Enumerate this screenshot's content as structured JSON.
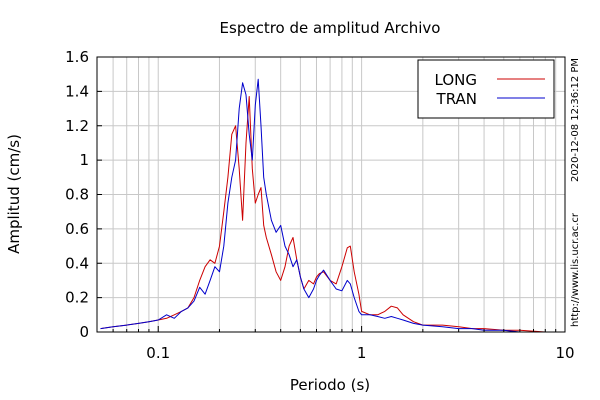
{
  "chart_data": {
    "type": "line",
    "title": "Espectro de amplitud Archivo",
    "xlabel": "Periodo (s)",
    "ylabel": "Amplitud (cm/s)",
    "xscale": "log",
    "xlim": [
      0.05,
      10
    ],
    "ylim": [
      0,
      1.6
    ],
    "x_ticks": [
      0.1,
      1,
      10
    ],
    "x_tick_labels": [
      "0.1",
      "1",
      "10"
    ],
    "y_ticks": [
      0,
      0.2,
      0.4,
      0.6,
      0.8,
      1,
      1.2,
      1.4,
      1.6
    ],
    "y_tick_labels": [
      "0",
      "0.2",
      "0.4",
      "0.6",
      "0.8",
      "1",
      "1.2",
      "1.4",
      "1.6"
    ],
    "grid": true,
    "legend_position": "top-right",
    "side_text_top": "2020-12-08 12:36:12 PM",
    "side_text_bottom": "http://www.lis.ucr.ac.cr",
    "series": [
      {
        "name": "LONG",
        "color": "#cc0000",
        "x": [
          0.052,
          0.06,
          0.07,
          0.08,
          0.09,
          0.1,
          0.11,
          0.12,
          0.13,
          0.14,
          0.15,
          0.16,
          0.17,
          0.18,
          0.19,
          0.2,
          0.21,
          0.22,
          0.23,
          0.24,
          0.25,
          0.26,
          0.27,
          0.28,
          0.29,
          0.3,
          0.31,
          0.32,
          0.33,
          0.34,
          0.36,
          0.38,
          0.4,
          0.42,
          0.44,
          0.46,
          0.48,
          0.5,
          0.52,
          0.55,
          0.58,
          0.6,
          0.62,
          0.65,
          0.7,
          0.75,
          0.8,
          0.85,
          0.88,
          0.92,
          0.97,
          1.0,
          1.1,
          1.2,
          1.3,
          1.4,
          1.5,
          1.6,
          1.8,
          2.0,
          2.5,
          3.0,
          3.5,
          4.0,
          5.0,
          6.0,
          8.0,
          10.0
        ],
        "values": [
          0.02,
          0.03,
          0.04,
          0.05,
          0.06,
          0.07,
          0.08,
          0.1,
          0.12,
          0.14,
          0.2,
          0.3,
          0.38,
          0.42,
          0.4,
          0.5,
          0.7,
          0.9,
          1.15,
          1.2,
          0.95,
          0.65,
          1.1,
          1.37,
          0.95,
          0.75,
          0.8,
          0.84,
          0.62,
          0.55,
          0.45,
          0.35,
          0.3,
          0.38,
          0.5,
          0.55,
          0.42,
          0.32,
          0.25,
          0.3,
          0.28,
          0.32,
          0.34,
          0.35,
          0.3,
          0.28,
          0.38,
          0.49,
          0.5,
          0.35,
          0.22,
          0.12,
          0.1,
          0.1,
          0.12,
          0.15,
          0.14,
          0.1,
          0.06,
          0.04,
          0.04,
          0.03,
          0.02,
          0.02,
          0.01,
          0.01,
          0.0,
          0.0
        ]
      },
      {
        "name": "TRAN",
        "color": "#0000cc",
        "x": [
          0.052,
          0.06,
          0.07,
          0.08,
          0.09,
          0.1,
          0.11,
          0.12,
          0.13,
          0.14,
          0.15,
          0.16,
          0.17,
          0.18,
          0.19,
          0.2,
          0.21,
          0.22,
          0.23,
          0.24,
          0.25,
          0.26,
          0.27,
          0.28,
          0.29,
          0.3,
          0.31,
          0.32,
          0.33,
          0.34,
          0.36,
          0.38,
          0.4,
          0.42,
          0.44,
          0.46,
          0.48,
          0.5,
          0.52,
          0.55,
          0.58,
          0.6,
          0.62,
          0.65,
          0.7,
          0.75,
          0.8,
          0.85,
          0.88,
          0.92,
          0.97,
          1.0,
          1.1,
          1.2,
          1.3,
          1.4,
          1.5,
          1.6,
          1.8,
          2.0,
          2.5,
          3.0,
          3.5,
          4.0,
          5.0,
          6.0,
          8.0,
          10.0
        ],
        "values": [
          0.02,
          0.03,
          0.04,
          0.05,
          0.06,
          0.07,
          0.1,
          0.08,
          0.12,
          0.14,
          0.18,
          0.26,
          0.22,
          0.3,
          0.38,
          0.35,
          0.5,
          0.75,
          0.9,
          1.0,
          1.3,
          1.45,
          1.38,
          1.15,
          1.0,
          1.32,
          1.47,
          1.2,
          0.9,
          0.8,
          0.65,
          0.58,
          0.62,
          0.5,
          0.45,
          0.38,
          0.42,
          0.32,
          0.25,
          0.2,
          0.25,
          0.3,
          0.33,
          0.36,
          0.3,
          0.25,
          0.24,
          0.3,
          0.28,
          0.2,
          0.12,
          0.1,
          0.1,
          0.09,
          0.08,
          0.09,
          0.08,
          0.07,
          0.05,
          0.04,
          0.03,
          0.02,
          0.02,
          0.01,
          0.01,
          0.0,
          0.0,
          0.0
        ]
      }
    ]
  }
}
